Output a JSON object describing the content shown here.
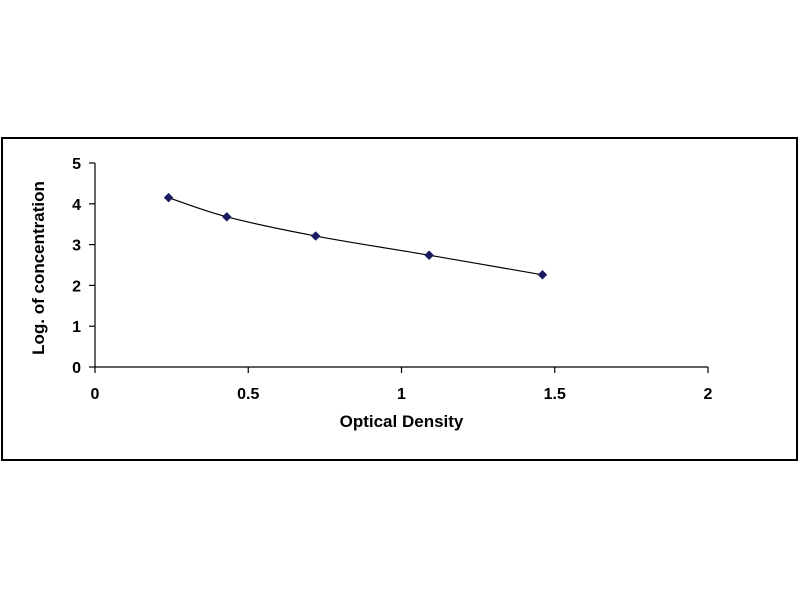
{
  "chart_data": {
    "type": "scatter",
    "title": "",
    "xlabel": "Optical Density",
    "ylabel": "Log. of concentration",
    "xlim": [
      0,
      2
    ],
    "ylim": [
      0,
      5
    ],
    "x_ticks": [
      "0",
      "0.5",
      "1",
      "1.5",
      "2"
    ],
    "y_ticks": [
      "0",
      "1",
      "2",
      "3",
      "4",
      "5"
    ],
    "grid": false,
    "legend": "none",
    "series": [
      {
        "x": [
          0.24,
          0.43,
          0.72,
          1.09,
          1.46
        ],
        "y": [
          4.15,
          3.68,
          3.21,
          2.74,
          2.26
        ],
        "marker": "diamond",
        "marker_color": "#1a1a5e",
        "line": "smooth-fit",
        "line_color": "#000000"
      }
    ]
  }
}
